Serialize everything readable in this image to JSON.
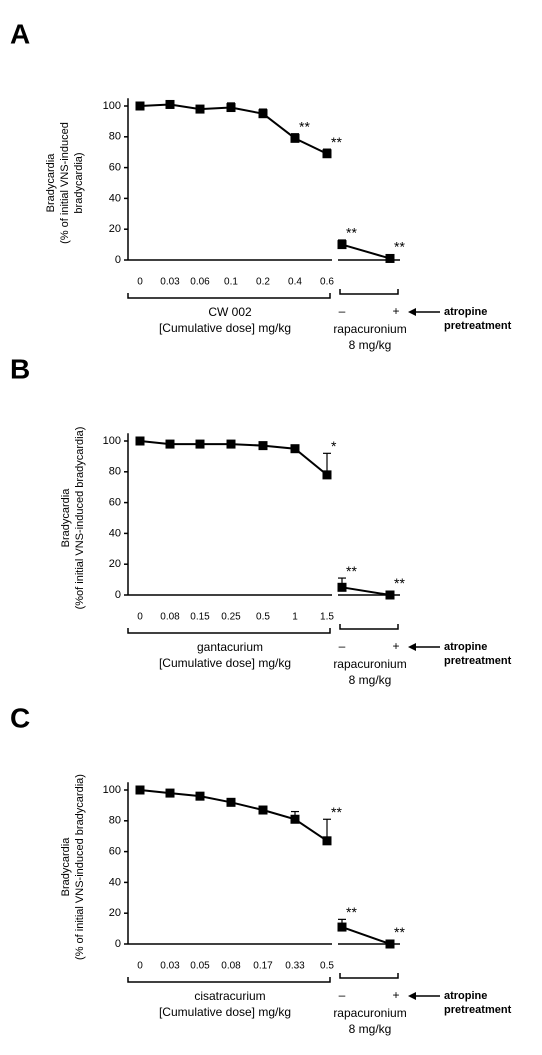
{
  "chart_data": [
    {
      "type": "line",
      "panel": "A",
      "ylabel": [
        "Bradycardia",
        "(% of initial VNS-induced",
        "bradycardia)"
      ],
      "ylim": [
        0,
        105
      ],
      "yticks": [
        0,
        20,
        40,
        60,
        80,
        100
      ],
      "series": [
        {
          "categories": [
            "0",
            "0.03",
            "0.06",
            "0.1",
            "0.2",
            "0.4",
            "0.6"
          ],
          "values": [
            100,
            101,
            98,
            99,
            95,
            79,
            69
          ],
          "errors": [
            2,
            1,
            2,
            3,
            3,
            3,
            3
          ],
          "annotations": [
            null,
            null,
            null,
            null,
            null,
            "**",
            "**"
          ],
          "group_label": [
            "CW 002",
            "[Cumulative dose] mg/kg"
          ]
        },
        {
          "categories": [
            "–",
            "+"
          ],
          "values": [
            10,
            1
          ],
          "errors": [
            3,
            1
          ],
          "annotations": [
            "**",
            "**"
          ],
          "group_label": [
            "rapacuronium",
            "8 mg/kg"
          ]
        }
      ],
      "arrow_label": [
        "atropine",
        "pretreatment"
      ]
    },
    {
      "type": "line",
      "panel": "B",
      "ylabel": [
        "Bradycardia",
        "(%of initial VNS-induced bradycardia)"
      ],
      "ylim": [
        0,
        105
      ],
      "yticks": [
        0,
        20,
        40,
        60,
        80,
        100
      ],
      "series": [
        {
          "categories": [
            "0",
            "0.08",
            "0.15",
            "0.25",
            "0.5",
            "1",
            "1.5"
          ],
          "values": [
            100,
            98,
            98,
            98,
            97,
            95,
            78
          ],
          "errors": [
            2,
            2,
            1,
            1,
            1,
            2,
            14
          ],
          "annotations": [
            null,
            null,
            null,
            null,
            null,
            null,
            "*"
          ],
          "group_label": [
            "gantacurium",
            "[Cumulative dose] mg/kg"
          ]
        },
        {
          "categories": [
            "–",
            "+"
          ],
          "values": [
            5,
            0
          ],
          "errors": [
            6,
            1
          ],
          "annotations": [
            "**",
            "**"
          ],
          "group_label": [
            "rapacuronium",
            "8 mg/kg"
          ]
        }
      ],
      "arrow_label": [
        "atropine",
        "pretreatment"
      ]
    },
    {
      "type": "line",
      "panel": "C",
      "ylabel": [
        "Bradycardia",
        "(% of initial VNS-induced bradycardia)"
      ],
      "ylim": [
        0,
        105
      ],
      "yticks": [
        0,
        20,
        40,
        60,
        80,
        100
      ],
      "series": [
        {
          "categories": [
            "0",
            "0.03",
            "0.05",
            "0.08",
            "0.17",
            "0.33",
            "0.5"
          ],
          "values": [
            100,
            98,
            96,
            92,
            87,
            81,
            67
          ],
          "errors": [
            1,
            2,
            1,
            1,
            2,
            5,
            14
          ],
          "annotations": [
            null,
            null,
            null,
            null,
            null,
            null,
            "**"
          ],
          "group_label": [
            "cisatracurium",
            "[Cumulative dose] mg/kg"
          ]
        },
        {
          "categories": [
            "–",
            "+"
          ],
          "values": [
            11,
            0
          ],
          "errors": [
            5,
            1
          ],
          "annotations": [
            "**",
            "**"
          ],
          "group_label": [
            "rapacuronium",
            "8 mg/kg"
          ]
        }
      ],
      "arrow_label": [
        "atropine",
        "pretreatment"
      ]
    }
  ]
}
